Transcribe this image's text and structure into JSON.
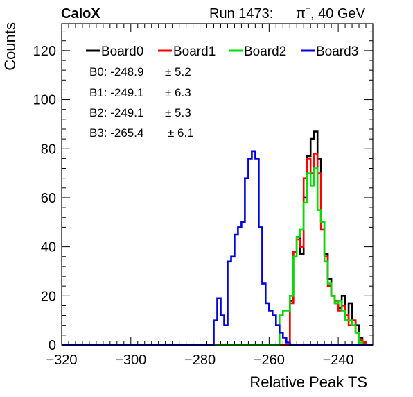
{
  "header": {
    "logo": "CaloX",
    "run_label": "Run 1473:",
    "particle": "π",
    "charge": "+",
    "energy": ", 40 GeV"
  },
  "chart_data": {
    "type": "histogram-step",
    "xlabel": "Relative Peak TS",
    "ylabel": "Counts",
    "xlim": [
      -320,
      -230
    ],
    "ylim": [
      0,
      131
    ],
    "xticks": [
      -320,
      -300,
      -280,
      -260,
      -240
    ],
    "xtick_labels": [
      "−320",
      "−300",
      "−280",
      "−260",
      "−240"
    ],
    "yticks": [
      0,
      20,
      40,
      60,
      80,
      100,
      120
    ],
    "ytick_labels": [
      "0",
      "20",
      "40",
      "60",
      "80",
      "100",
      "120"
    ],
    "legend_position": "top",
    "series": [
      {
        "name": "Board0",
        "color": "#000000",
        "x": [
          -254,
          -253,
          -252,
          -251,
          -250,
          -249,
          -248,
          -247,
          -246,
          -245,
          -244,
          -243,
          -242,
          -241,
          -240,
          -239,
          -238,
          -237,
          -236,
          -235,
          -234,
          -233
        ],
        "values": [
          18,
          38,
          44,
          37,
          60,
          77,
          84,
          87,
          76,
          50,
          37,
          27,
          20,
          17,
          15,
          20,
          10,
          17,
          10,
          8,
          3,
          1
        ]
      },
      {
        "name": "Board1",
        "color": "#ff0000",
        "x": [
          -254,
          -253,
          -252,
          -251,
          -250,
          -249,
          -248,
          -247,
          -246,
          -245,
          -244,
          -243,
          -242,
          -241,
          -240,
          -239,
          -238,
          -237,
          -236,
          -235,
          -234,
          -233
        ],
        "values": [
          17,
          38,
          43,
          40,
          68,
          76,
          70,
          78,
          70,
          47,
          36,
          24,
          20,
          18,
          14,
          16,
          12,
          8,
          10,
          5,
          2,
          1
        ]
      },
      {
        "name": "Board2",
        "color": "#00dd00",
        "x": [
          -257,
          -256,
          -255,
          -254,
          -253,
          -252,
          -251,
          -250,
          -249,
          -248,
          -247,
          -246,
          -245,
          -244,
          -243,
          -242,
          -241,
          -240,
          -239,
          -238,
          -237,
          -236,
          -235,
          -234,
          -233
        ],
        "values": [
          12,
          14,
          14,
          20,
          36,
          44,
          47,
          58,
          70,
          65,
          72,
          55,
          50,
          34,
          25,
          20,
          17,
          18,
          14,
          10,
          10,
          8,
          5,
          1,
          0
        ]
      },
      {
        "name": "Board3",
        "color": "#0000dd",
        "x": [
          -276,
          -275,
          -274,
          -273,
          -272,
          -271,
          -270,
          -269,
          -268,
          -267,
          -266,
          -265,
          -264,
          -263,
          -262,
          -261,
          -260,
          -259,
          -258,
          -257,
          -256,
          -255
        ],
        "values": [
          10,
          19,
          12,
          8,
          34,
          36,
          45,
          48,
          50,
          68,
          76,
          79,
          76,
          48,
          25,
          17,
          14,
          12,
          8,
          5,
          3,
          1
        ]
      }
    ],
    "stats": [
      {
        "label": "B0: -248.9",
        "err": "± 5.2"
      },
      {
        "label": "B1: -249.1",
        "err": "± 6.3"
      },
      {
        "label": "B2: -249.1",
        "err": "± 5.3"
      },
      {
        "label": "B3: -265.4",
        "err": "± 6.1"
      }
    ]
  }
}
